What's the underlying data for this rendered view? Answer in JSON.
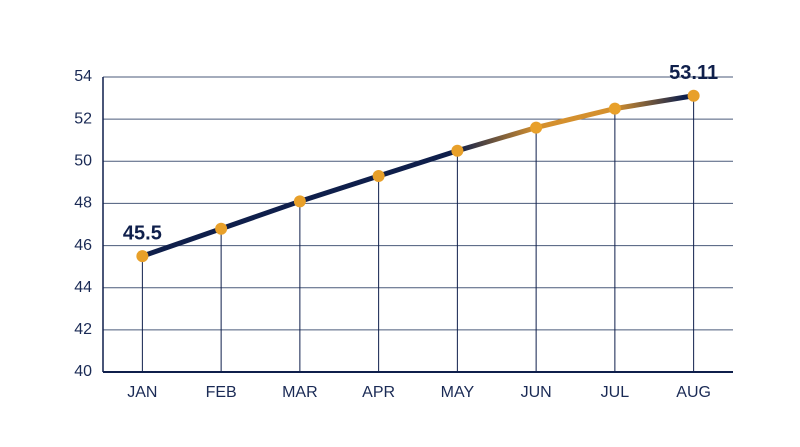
{
  "chart_data": {
    "type": "line",
    "categories": [
      "JAN",
      "FEB",
      "MAR",
      "APR",
      "MAY",
      "JUN",
      "JUL",
      "AUG"
    ],
    "values": [
      45.5,
      46.8,
      48.1,
      49.3,
      50.5,
      51.6,
      52.5,
      53.11
    ],
    "value_labels": [
      "45.5",
      null,
      null,
      null,
      null,
      null,
      null,
      "53.11"
    ],
    "color": "#0f1f4b",
    "highlight_color": "#d4902e",
    "marker_color": "#e8a02a",
    "ylim": [
      40,
      54
    ],
    "yticks": [
      40,
      42,
      44,
      46,
      48,
      50,
      52,
      54
    ],
    "grid": true
  }
}
